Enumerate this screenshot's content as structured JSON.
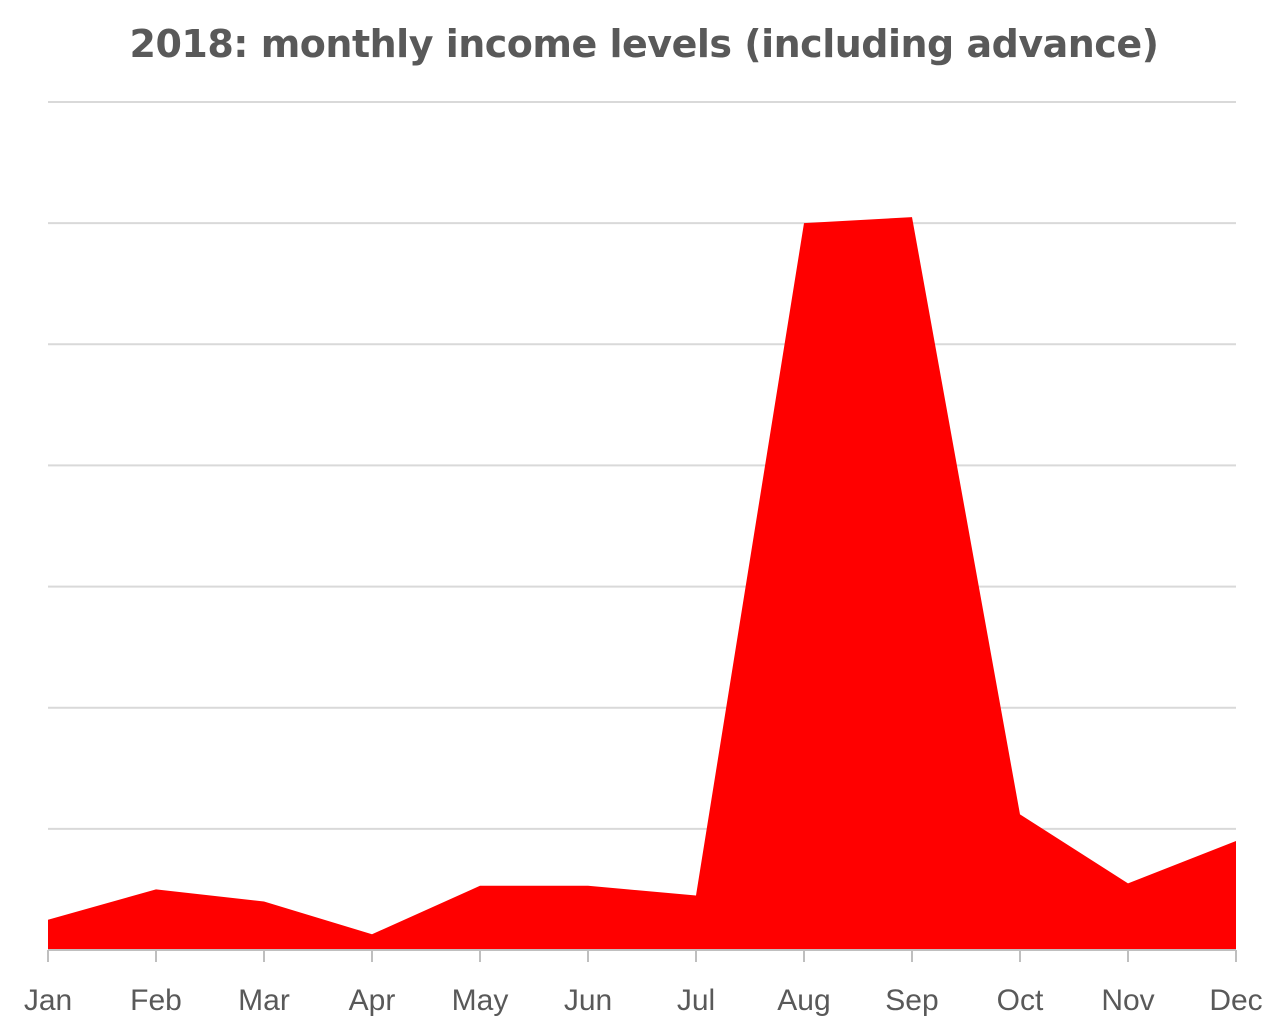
{
  "chart_data": {
    "type": "area",
    "title": "2018: monthly income levels (including advance)",
    "xlabel": "",
    "ylabel": "",
    "categories": [
      "Jan",
      "Feb",
      "Mar",
      "Apr",
      "May",
      "Jun",
      "Jul",
      "Aug",
      "Sep",
      "Oct",
      "Nov",
      "Dec"
    ],
    "series": [
      {
        "values": [
          0.25,
          0.5,
          0.4,
          0.13,
          0.53,
          0.53,
          0.45,
          6.0,
          6.05,
          1.12,
          0.55,
          0.9
        ]
      }
    ],
    "ylim": [
      0,
      7
    ],
    "y_gridlines": [
      1,
      2,
      3,
      4,
      5,
      6,
      7
    ],
    "y_tick_labels_shown": false,
    "grid": true,
    "legend": "none",
    "colors": {
      "area": "#ff0000",
      "grid": "#d9d9d9",
      "axis": "#bfbfbf",
      "text": "#595959"
    }
  }
}
